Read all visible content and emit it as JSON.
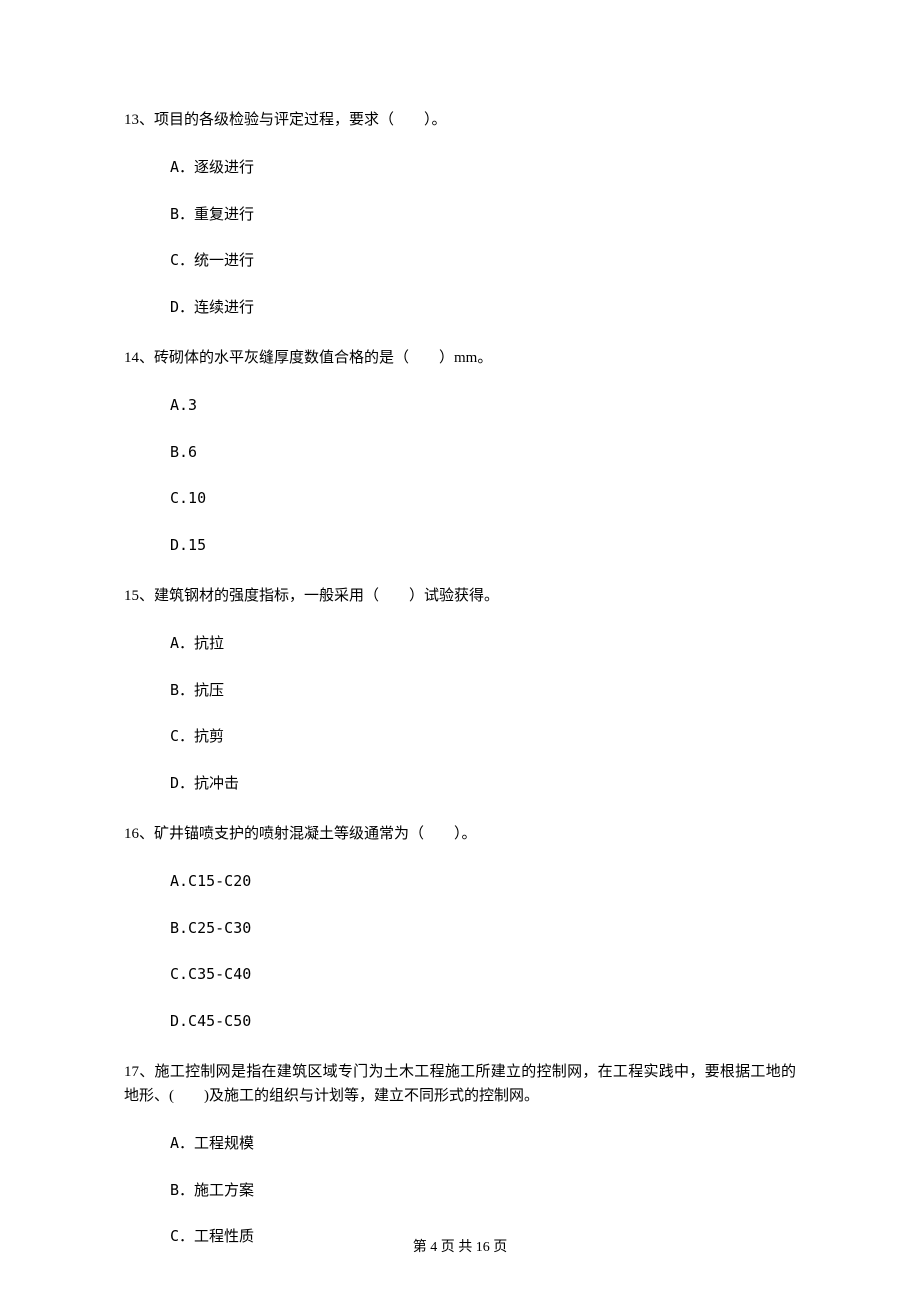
{
  "questions": [
    {
      "stem": "13、项目的各级检验与评定过程，要求（　　）。",
      "options": [
        "A．逐级进行",
        "B．重复进行",
        "C．统一进行",
        "D．连续进行"
      ]
    },
    {
      "stem": "14、砖砌体的水平灰缝厚度数值合格的是（　　）mm。",
      "options": [
        "A.3",
        "B.6",
        "C.10",
        "D.15"
      ]
    },
    {
      "stem": "15、建筑钢材的强度指标，一般采用（　　）试验获得。",
      "options": [
        "A．抗拉",
        "B．抗压",
        "C．抗剪",
        "D．抗冲击"
      ]
    },
    {
      "stem": "16、矿井锚喷支护的喷射混凝土等级通常为（　　）。",
      "options": [
        "A.C15-C20",
        "B.C25-C30",
        "C.C35-C40",
        "D.C45-C50"
      ]
    },
    {
      "stem": "17、施工控制网是指在建筑区域专门为土木工程施工所建立的控制网，在工程实践中，要根据工地的地形、(　　)及施工的组织与计划等，建立不同形式的控制网。",
      "options": [
        "A．工程规模",
        "B．施工方案",
        "C．工程性质"
      ]
    }
  ],
  "footer": "第 4 页 共 16 页"
}
